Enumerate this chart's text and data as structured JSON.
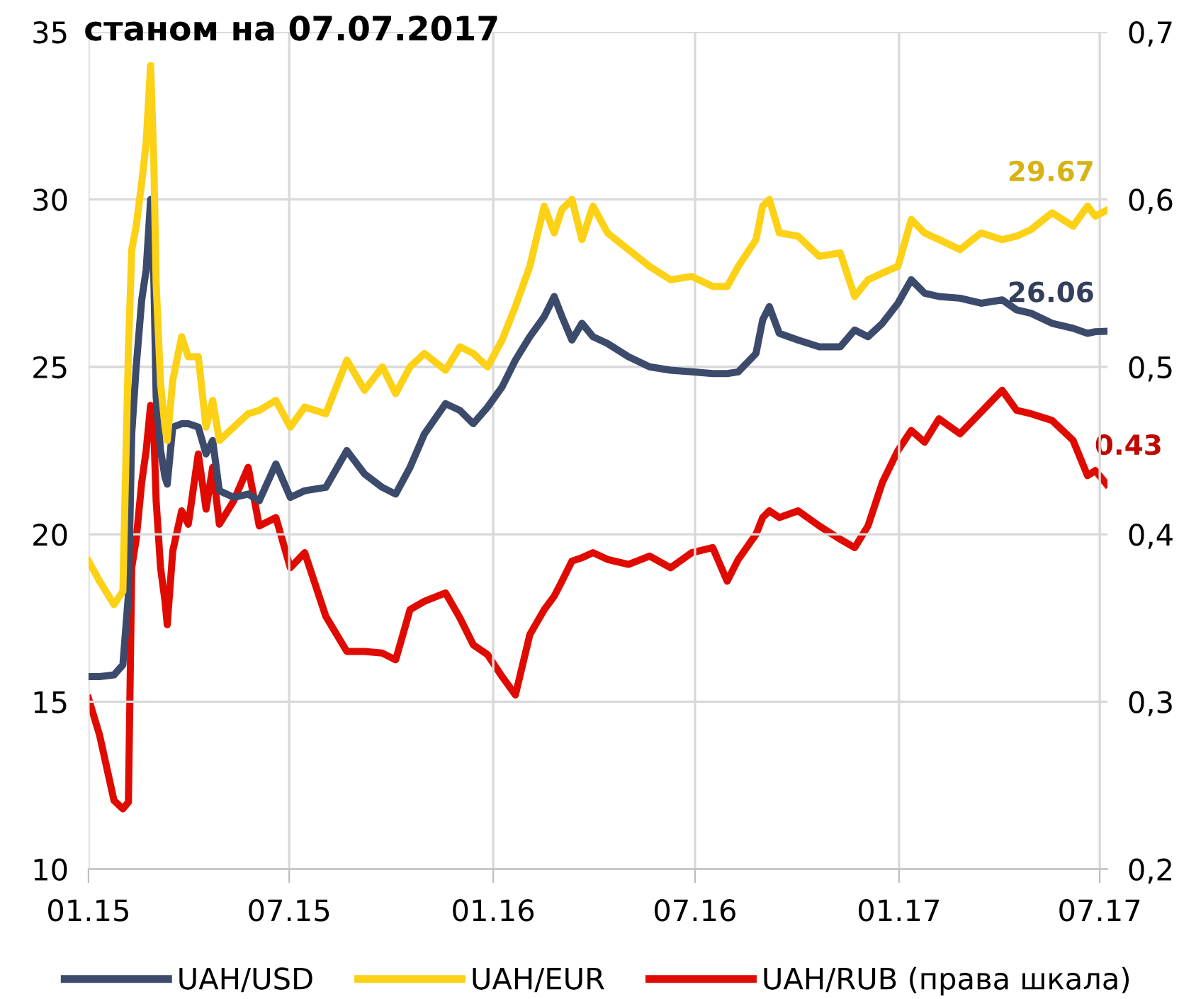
{
  "chart_data": {
    "type": "line",
    "title": "станом на 07.07.2017",
    "x": [
      "2015-01-01",
      "2015-01-11",
      "2015-01-24",
      "2015-02-01",
      "2015-02-06",
      "2015-02-09",
      "2015-02-13",
      "2015-02-18",
      "2015-02-22",
      "2015-02-26",
      "2015-03-01",
      "2015-03-03",
      "2015-03-07",
      "2015-03-11",
      "2015-03-13",
      "2015-03-18",
      "2015-03-26",
      "2015-04-01",
      "2015-04-10",
      "2015-04-17",
      "2015-04-23",
      "2015-04-29",
      "2015-05-12",
      "2015-05-25",
      "2015-06-04",
      "2015-06-19",
      "2015-07-02",
      "2015-07-15",
      "2015-08-03",
      "2015-08-22",
      "2015-09-07",
      "2015-09-23",
      "2015-10-05",
      "2015-10-18",
      "2015-10-31",
      "2015-11-19",
      "2015-12-02",
      "2015-12-14",
      "2015-12-27",
      "2016-01-09",
      "2016-01-21",
      "2016-02-03",
      "2016-02-16",
      "2016-02-25",
      "2016-03-03",
      "2016-03-12",
      "2016-03-21",
      "2016-03-31",
      "2016-04-13",
      "2016-05-02",
      "2016-05-21",
      "2016-06-09",
      "2016-06-28",
      "2016-07-17",
      "2016-07-30",
      "2016-08-09",
      "2016-08-25",
      "2016-08-31",
      "2016-09-06",
      "2016-09-15",
      "2016-10-02",
      "2016-10-21",
      "2016-11-09",
      "2016-11-22",
      "2016-12-04",
      "2016-12-17",
      "2016-12-31",
      "2017-01-12",
      "2017-01-24",
      "2017-02-06",
      "2017-02-25",
      "2017-03-16",
      "2017-04-04",
      "2017-04-17",
      "2017-04-30",
      "2017-05-19",
      "2017-06-07",
      "2017-06-20",
      "2017-06-27",
      "2017-07-07"
    ],
    "series": [
      {
        "name": "UAH/USD",
        "color": "#3c4a6b",
        "values": [
          15.75,
          15.75,
          15.8,
          16.1,
          18.2,
          23.0,
          25.0,
          27.0,
          27.9,
          30.0,
          27.5,
          24.1,
          22.5,
          21.7,
          21.5,
          23.2,
          23.3,
          23.3,
          23.2,
          22.4,
          22.8,
          21.3,
          21.1,
          21.2,
          21.0,
          22.1,
          21.1,
          21.3,
          21.4,
          22.5,
          21.8,
          21.4,
          21.2,
          22.0,
          23.0,
          23.9,
          23.7,
          23.3,
          23.8,
          24.4,
          25.2,
          25.9,
          26.5,
          27.1,
          26.5,
          25.8,
          26.3,
          25.9,
          25.7,
          25.3,
          25.0,
          24.9,
          24.85,
          24.8,
          24.8,
          24.85,
          25.4,
          26.4,
          26.8,
          26.0,
          25.8,
          25.6,
          25.6,
          26.1,
          25.9,
          26.3,
          26.9,
          27.6,
          27.2,
          27.1,
          27.05,
          26.9,
          27.0,
          26.7,
          26.6,
          26.3,
          26.15,
          26.0,
          26.05,
          26.06
        ],
        "value_labels": [
          null,
          null,
          null,
          null,
          null,
          null,
          null,
          null,
          null,
          null,
          null,
          null,
          null,
          null,
          null,
          null,
          null,
          null,
          null,
          null,
          null,
          null,
          null,
          null,
          null,
          null,
          null,
          null,
          null,
          null,
          null,
          null,
          null,
          null,
          null,
          null,
          null,
          null,
          null,
          null,
          null,
          null,
          null,
          null,
          null,
          null,
          null,
          null,
          null,
          null,
          null,
          null,
          null,
          null,
          null,
          null,
          null,
          null,
          null,
          null,
          null,
          null,
          null,
          null,
          null,
          null,
          null,
          null,
          null,
          null,
          null,
          null,
          null,
          null,
          null,
          null,
          null,
          null,
          null,
          "26.06"
        ]
      },
      {
        "name": "UAH/EUR",
        "color": "#fcd116",
        "values": [
          19.2,
          18.6,
          17.9,
          18.3,
          25.5,
          28.5,
          29.2,
          30.5,
          31.7,
          34.0,
          31.0,
          27.5,
          24.5,
          23.2,
          22.8,
          24.6,
          25.9,
          25.3,
          25.3,
          23.2,
          24.0,
          22.8,
          23.2,
          23.6,
          23.7,
          24.0,
          23.2,
          23.8,
          23.6,
          25.2,
          24.3,
          25.0,
          24.2,
          25.0,
          25.4,
          24.9,
          25.6,
          25.4,
          25.0,
          25.8,
          26.8,
          28.0,
          29.8,
          29.0,
          29.7,
          30.0,
          28.8,
          29.8,
          29.0,
          28.5,
          28.0,
          27.6,
          27.7,
          27.4,
          27.4,
          28.0,
          28.8,
          29.8,
          30.0,
          29.0,
          28.9,
          28.3,
          28.4,
          27.1,
          27.6,
          27.8,
          28.0,
          29.4,
          29.0,
          28.8,
          28.5,
          29.0,
          28.8,
          28.9,
          29.1,
          29.6,
          29.2,
          29.8,
          29.5,
          29.67
        ],
        "value_labels": [
          null,
          null,
          null,
          null,
          null,
          null,
          null,
          null,
          null,
          null,
          null,
          null,
          null,
          null,
          null,
          null,
          null,
          null,
          null,
          null,
          null,
          null,
          null,
          null,
          null,
          null,
          null,
          null,
          null,
          null,
          null,
          null,
          null,
          null,
          null,
          null,
          null,
          null,
          null,
          null,
          null,
          null,
          null,
          null,
          null,
          null,
          null,
          null,
          null,
          null,
          null,
          null,
          null,
          null,
          null,
          null,
          null,
          null,
          null,
          null,
          null,
          null,
          null,
          null,
          null,
          null,
          null,
          null,
          null,
          null,
          null,
          null,
          null,
          null,
          null,
          null,
          null,
          null,
          null,
          "29.67"
        ]
      },
      {
        "name": "UAH/RUB (права шкала)",
        "color": "#e00b00",
        "axis": "y2",
        "values": [
          0.302,
          0.28,
          0.241,
          0.236,
          0.24,
          0.38,
          0.397,
          0.431,
          0.45,
          0.477,
          0.46,
          0.42,
          0.38,
          0.36,
          0.346,
          0.39,
          0.414,
          0.406,
          0.448,
          0.415,
          0.44,
          0.406,
          0.42,
          0.44,
          0.405,
          0.41,
          0.38,
          0.389,
          0.351,
          0.33,
          0.33,
          0.329,
          0.325,
          0.355,
          0.36,
          0.365,
          0.35,
          0.334,
          0.328,
          0.315,
          0.304,
          0.34,
          0.355,
          0.363,
          0.372,
          0.384,
          0.386,
          0.389,
          0.385,
          0.382,
          0.387,
          0.38,
          0.389,
          0.392,
          0.372,
          0.385,
          0.4,
          0.41,
          0.414,
          0.41,
          0.414,
          0.405,
          0.397,
          0.392,
          0.405,
          0.431,
          0.45,
          0.462,
          0.455,
          0.469,
          0.46,
          0.473,
          0.486,
          0.474,
          0.472,
          0.468,
          0.456,
          0.435,
          0.438,
          0.43
        ],
        "value_labels": [
          null,
          null,
          null,
          null,
          null,
          null,
          null,
          null,
          null,
          null,
          null,
          null,
          null,
          null,
          null,
          null,
          null,
          null,
          null,
          null,
          null,
          null,
          null,
          null,
          null,
          null,
          null,
          null,
          null,
          null,
          null,
          null,
          null,
          null,
          null,
          null,
          null,
          null,
          null,
          null,
          null,
          null,
          null,
          null,
          null,
          null,
          null,
          null,
          null,
          null,
          null,
          null,
          null,
          null,
          null,
          null,
          null,
          null,
          null,
          null,
          null,
          null,
          null,
          null,
          null,
          null,
          null,
          null,
          null,
          null,
          null,
          null,
          null,
          null,
          null,
          null,
          null,
          null,
          null,
          "0.43"
        ]
      }
    ],
    "xlim": [
      "2015-01-01",
      "2017-07-08"
    ],
    "xticks": [
      {
        "value": "2015-01-01",
        "label": "01.15"
      },
      {
        "value": "2015-07-01",
        "label": "07.15"
      },
      {
        "value": "2016-01-01",
        "label": "01.16"
      },
      {
        "value": "2016-07-01",
        "label": "07.16"
      },
      {
        "value": "2017-01-01",
        "label": "01.17"
      },
      {
        "value": "2017-07-01",
        "label": "07.17"
      }
    ],
    "ylim": [
      10,
      35
    ],
    "yticks": [
      10,
      15,
      20,
      25,
      30,
      35
    ],
    "y2lim": [
      0.2,
      0.7
    ],
    "y2ticks": [
      {
        "value": 0.2,
        "label": "0,2"
      },
      {
        "value": 0.3,
        "label": "0,3"
      },
      {
        "value": 0.4,
        "label": "0,4"
      },
      {
        "value": 0.5,
        "label": "0,5"
      },
      {
        "value": 0.6,
        "label": "0,6"
      },
      {
        "value": 0.7,
        "label": "0,7"
      }
    ],
    "grid": true,
    "legend": "bottom",
    "line_style": "solid",
    "marker": "none"
  }
}
